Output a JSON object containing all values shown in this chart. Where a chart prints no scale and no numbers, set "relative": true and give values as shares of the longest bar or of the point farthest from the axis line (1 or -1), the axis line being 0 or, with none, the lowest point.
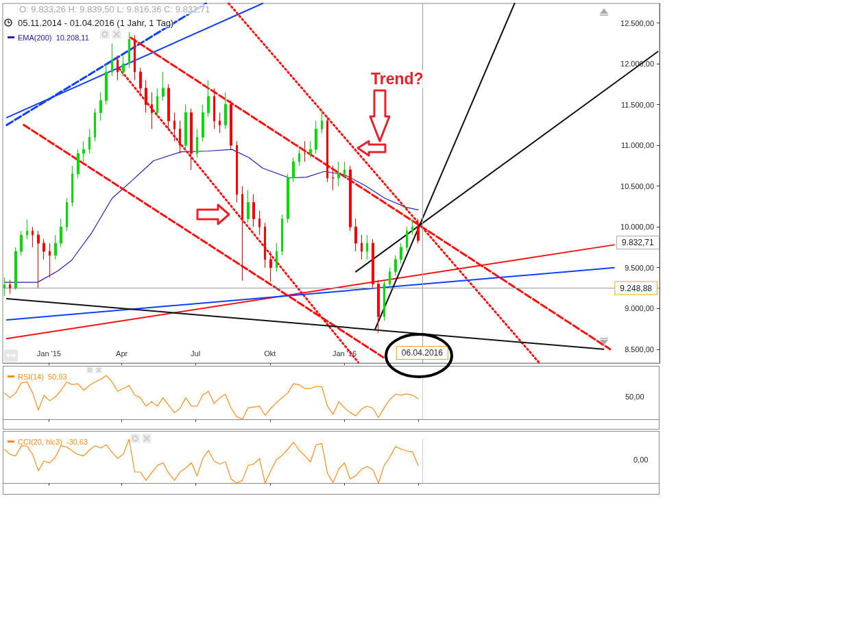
{
  "chart_data": [
    {
      "type": "candlestick",
      "xlim": [
        "2014-11-05",
        "2017-01-24"
      ],
      "ylim": [
        8330,
        12740
      ],
      "xticks": [
        {
          "value": "2015-01-01",
          "label": "Jan '15"
        },
        {
          "value": "2015-04-01",
          "label": "Apr"
        },
        {
          "value": "2015-07-01",
          "label": "Jul"
        },
        {
          "value": "2015-10-01",
          "label": "Okt"
        },
        {
          "value": "2016-01-01",
          "label": "Jan '16"
        }
      ],
      "yticks": [
        {
          "value": 8500,
          "label": "8.500,00"
        },
        {
          "value": 9000,
          "label": "9.000,00"
        },
        {
          "value": 9500,
          "label": "9.500,00"
        },
        {
          "value": 10000,
          "label": "10.000,00"
        },
        {
          "value": 10500,
          "label": "10.500,00"
        },
        {
          "value": 11000,
          "label": "11.000,00"
        },
        {
          "value": 11500,
          "label": "11.500,00"
        },
        {
          "value": 12000,
          "label": "12.000,00"
        },
        {
          "value": 12500,
          "label": "12.500,00"
        }
      ],
      "x": [
        "2014-11-07",
        "2014-11-14",
        "2014-11-21",
        "2014-11-28",
        "2014-12-05",
        "2014-12-12",
        "2014-12-19",
        "2014-12-26",
        "2015-01-02",
        "2015-01-09",
        "2015-01-16",
        "2015-01-23",
        "2015-01-30",
        "2015-02-06",
        "2015-02-13",
        "2015-02-20",
        "2015-02-27",
        "2015-03-06",
        "2015-03-13",
        "2015-03-20",
        "2015-03-27",
        "2015-04-03",
        "2015-04-10",
        "2015-04-17",
        "2015-04-24",
        "2015-05-01",
        "2015-05-08",
        "2015-05-15",
        "2015-05-22",
        "2015-05-29",
        "2015-06-05",
        "2015-06-12",
        "2015-06-19",
        "2015-06-26",
        "2015-07-03",
        "2015-07-10",
        "2015-07-17",
        "2015-07-24",
        "2015-07-31",
        "2015-08-07",
        "2015-08-14",
        "2015-08-21",
        "2015-08-28",
        "2015-09-04",
        "2015-09-11",
        "2015-09-18",
        "2015-09-25",
        "2015-10-02",
        "2015-10-09",
        "2015-10-16",
        "2015-10-23",
        "2015-10-30",
        "2015-11-06",
        "2015-11-13",
        "2015-11-20",
        "2015-11-27",
        "2015-12-04",
        "2015-12-11",
        "2015-12-18",
        "2015-12-25",
        "2016-01-01",
        "2016-01-08",
        "2016-01-15",
        "2016-01-22",
        "2016-01-29",
        "2016-02-05",
        "2016-02-12",
        "2016-02-19",
        "2016-02-26",
        "2016-03-04",
        "2016-03-11",
        "2016-03-18",
        "2016-03-25",
        "2016-04-01"
      ],
      "ohlc": [
        [
          9250,
          9380,
          9150,
          9290
        ],
        [
          9290,
          9350,
          9180,
          9250
        ],
        [
          9250,
          9750,
          9230,
          9700
        ],
        [
          9700,
          9950,
          9650,
          9900
        ],
        [
          9900,
          10090,
          9850,
          9950
        ],
        [
          9950,
          10000,
          9750,
          9900
        ],
        [
          9900,
          9950,
          9250,
          9800
        ],
        [
          9800,
          9850,
          9600,
          9700
        ],
        [
          9700,
          9800,
          9380,
          9650
        ],
        [
          9650,
          9900,
          9600,
          9800
        ],
        [
          9800,
          10100,
          9750,
          10000
        ],
        [
          10000,
          10350,
          9950,
          10300
        ],
        [
          10300,
          10750,
          10250,
          10650
        ],
        [
          10650,
          10950,
          10600,
          10900
        ],
        [
          10900,
          11050,
          10800,
          10950
        ],
        [
          10950,
          11200,
          10900,
          11100
        ],
        [
          11100,
          11450,
          11050,
          11400
        ],
        [
          11400,
          11650,
          11300,
          11550
        ],
        [
          11550,
          12000,
          11500,
          11900
        ],
        [
          11900,
          12250,
          11850,
          12050
        ],
        [
          12050,
          12100,
          11800,
          11900
        ],
        [
          11900,
          12100,
          11850,
          12000
        ],
        [
          12000,
          12390,
          11950,
          12300
        ],
        [
          12300,
          12350,
          11800,
          11900
        ],
        [
          11900,
          11950,
          11600,
          11700
        ],
        [
          11700,
          11800,
          11400,
          11500
        ],
        [
          11500,
          11650,
          11200,
          11400
        ],
        [
          11400,
          11700,
          11350,
          11600
        ],
        [
          11600,
          11900,
          11550,
          11700
        ],
        [
          11700,
          11750,
          11200,
          11300
        ],
        [
          11300,
          11400,
          11050,
          11200
        ],
        [
          11200,
          11300,
          10900,
          11000
        ],
        [
          11000,
          11500,
          10950,
          11400
        ],
        [
          11400,
          11450,
          10700,
          10900
        ],
        [
          10900,
          11200,
          10850,
          11100
        ],
        [
          11100,
          11500,
          11050,
          11400
        ],
        [
          11400,
          11800,
          11350,
          11600
        ],
        [
          11600,
          11700,
          11200,
          11300
        ],
        [
          11300,
          11400,
          11150,
          11250
        ],
        [
          11250,
          11650,
          11200,
          11500
        ],
        [
          11500,
          11550,
          10950,
          11000
        ],
        [
          11000,
          11050,
          10300,
          10400
        ],
        [
          10400,
          10500,
          9340,
          10100
        ],
        [
          10100,
          10450,
          10050,
          10300
        ],
        [
          10300,
          10400,
          10000,
          10100
        ],
        [
          10100,
          10200,
          9900,
          10000
        ],
        [
          10000,
          10050,
          9500,
          9600
        ],
        [
          9600,
          9700,
          9330,
          9500
        ],
        [
          9500,
          9800,
          9450,
          9700
        ],
        [
          9700,
          10150,
          9650,
          10100
        ],
        [
          10100,
          10650,
          10050,
          10600
        ],
        [
          10600,
          10850,
          10550,
          10800
        ],
        [
          10800,
          10950,
          10750,
          10900
        ],
        [
          10900,
          11050,
          10800,
          10900
        ],
        [
          10900,
          11050,
          10850,
          10950
        ],
        [
          10950,
          11300,
          10900,
          11200
        ],
        [
          11200,
          11430,
          11150,
          11300
        ],
        [
          11300,
          11350,
          10550,
          10600
        ],
        [
          10600,
          10750,
          10450,
          10600
        ],
        [
          10600,
          10800,
          10500,
          10650
        ],
        [
          10650,
          10800,
          10600,
          10700
        ],
        [
          10700,
          10750,
          9950,
          10000
        ],
        [
          10000,
          10100,
          9700,
          9800
        ],
        [
          9800,
          9900,
          9600,
          9700
        ],
        [
          9700,
          9900,
          9600,
          9800
        ],
        [
          9800,
          9850,
          9250,
          9300
        ],
        [
          9300,
          9350,
          8700,
          8900
        ],
        [
          8900,
          9350,
          8850,
          9300
        ],
        [
          9300,
          9500,
          9250,
          9450
        ],
        [
          9450,
          9650,
          9400,
          9600
        ],
        [
          9600,
          9800,
          9550,
          9750
        ],
        [
          9750,
          10000,
          9700,
          9950
        ],
        [
          9950,
          10100,
          9900,
          10000
        ],
        [
          10000,
          10100,
          9800,
          9832.71
        ]
      ],
      "colors": [
        "#00dd00",
        "#ff0000",
        "#00dd00",
        "#00dd00",
        "#00dd00",
        "#ff0000",
        "#ff0000",
        "#ff0000",
        "#ff0000",
        "#00dd00",
        "#00dd00",
        "#00dd00",
        "#00dd00",
        "#00dd00",
        "#00dd00",
        "#00dd00",
        "#00dd00",
        "#00dd00",
        "#00dd00",
        "#00dd00",
        "#ff0000",
        "#00dd00",
        "#00dd00",
        "#ff0000",
        "#ff0000",
        "#ff0000",
        "#ff0000",
        "#00dd00",
        "#00dd00",
        "#ff0000",
        "#ff0000",
        "#ff0000",
        "#00dd00",
        "#ff0000",
        "#00dd00",
        "#00dd00",
        "#00dd00",
        "#ff0000",
        "#ff0000",
        "#00dd00",
        "#ff0000",
        "#ff0000",
        "#ff0000",
        "#00dd00",
        "#ff0000",
        "#ff0000",
        "#ff0000",
        "#ff0000",
        "#00dd00",
        "#00dd00",
        "#00dd00",
        "#00dd00",
        "#00dd00",
        "#ff0000",
        "#00dd00",
        "#00dd00",
        "#00dd00",
        "#ff0000",
        "#ff0000",
        "#00dd00",
        "#00dd00",
        "#ff0000",
        "#ff0000",
        "#ff0000",
        "#00dd00",
        "#ff0000",
        "#ff0000",
        "#00dd00",
        "#00dd00",
        "#00dd00",
        "#00dd00",
        "#00dd00",
        "#00dd00",
        "#ff0000"
      ],
      "series": [
        {
          "type": "line",
          "name": "EMA(200)  10.208,11",
          "color": "#2020b0",
          "x": [
            "2014-11-07",
            "2014-12-18",
            "2015-01-12",
            "2015-01-29",
            "2015-02-23",
            "2015-03-20",
            "2015-04-15",
            "2015-05-10",
            "2015-06-13",
            "2015-07-16",
            "2015-08-15",
            "2015-09-05",
            "2015-09-22",
            "2015-10-25",
            "2015-11-15",
            "2015-12-07",
            "2016-01-01",
            "2016-01-26",
            "2016-02-20",
            "2016-03-17",
            "2016-04-01"
          ],
          "values": [
            9320,
            9320,
            9460,
            9590,
            9930,
            10350,
            10580,
            10810,
            10920,
            10930,
            10950,
            10850,
            10720,
            10600,
            10610,
            10680,
            10640,
            10510,
            10350,
            10240,
            10208
          ]
        },
        {
          "type": "line",
          "color": "#1040ff",
          "line_style": "dashed",
          "x": [
            "2014-11-10",
            "2015-07-14"
          ],
          "values": [
            11250,
            12740
          ]
        },
        {
          "type": "line",
          "color": "#1040ff",
          "line_style": "solid",
          "x": [
            "2014-11-10",
            "2015-09-22"
          ],
          "values": [
            11340,
            12740
          ]
        },
        {
          "type": "line",
          "color": "#ff1010",
          "line_style": "dashed",
          "x": [
            "2015-04-12",
            "2016-11-24"
          ],
          "values": [
            12320,
            8500
          ]
        },
        {
          "type": "line",
          "color": "#ff1010",
          "line_style": "dashed",
          "x": [
            "2014-12-01",
            "2016-02-18"
          ],
          "values": [
            11250,
            8400
          ]
        },
        {
          "type": "line",
          "color": "#ff1010",
          "line_style": "dotted",
          "x": [
            "2015-03-29",
            "2016-01-18"
          ],
          "values": [
            11940,
            8340
          ]
        },
        {
          "type": "line",
          "color": "#ff1010",
          "line_style": "dotted",
          "x": [
            "2015-08-11",
            "2016-08-28"
          ],
          "values": [
            12740,
            8340
          ]
        },
        {
          "type": "line",
          "color": "#ff1010",
          "line_style": "solid",
          "x": [
            "2014-11-10",
            "2016-11-29"
          ],
          "values": [
            8630,
            9780
          ]
        },
        {
          "type": "line",
          "color": "#1040ff",
          "line_style": "solid",
          "x": [
            "2014-11-10",
            "2016-11-29"
          ],
          "values": [
            8860,
            9500
          ]
        },
        {
          "type": "line",
          "color": "#111111",
          "line_style": "solid",
          "x": [
            "2014-11-10",
            "2016-11-16"
          ],
          "values": [
            9120,
            8500
          ]
        },
        {
          "type": "line",
          "color": "#111111",
          "line_style": "solid",
          "x": [
            "2016-01-15",
            "2017-01-22"
          ],
          "values": [
            9450,
            12150
          ]
        },
        {
          "type": "line",
          "color": "#111111",
          "line_style": "solid",
          "x": [
            "2016-02-08",
            "2016-07-29"
          ],
          "values": [
            8750,
            12740
          ]
        }
      ],
      "ref_lines": [
        {
          "axis": "y",
          "value": 9248.88,
          "label": "9.248,88",
          "color": "#999999"
        },
        {
          "axis": "x",
          "value": "2016-04-06",
          "label": "06.04.2016",
          "color": "#999999"
        }
      ],
      "annotations": [
        "O: 9.833,26 H: 9.839,50 L: 9.816,36 C: 9.832,71",
        "05.11.2014 - 01.04.2016 (1 Jahr, 1 Tag)",
        "Trend?",
        "9.832,71"
      ],
      "marker": "none",
      "legend": "top left",
      "grid": false
    },
    {
      "type": "line",
      "xlim": [
        "2014-11-05",
        "2017-01-24"
      ],
      "relative": true,
      "xticks": [
        {
          "value": "2015-01-01",
          "label": null
        },
        {
          "value": "2015-04-01",
          "label": null
        },
        {
          "value": "2015-07-01",
          "label": null
        },
        {
          "value": "2015-10-01",
          "label": null
        },
        {
          "value": "2016-01-01",
          "label": null
        },
        {
          "value": "2016-04-01",
          "label": null
        }
      ],
      "tick_labels": false,
      "annotations": [
        "50,00"
      ],
      "x": [
        "2014-11-07",
        "2014-11-14",
        "2014-11-21",
        "2014-11-28",
        "2014-12-05",
        "2014-12-12",
        "2014-12-19",
        "2014-12-26",
        "2015-01-02",
        "2015-01-09",
        "2015-01-16",
        "2015-01-23",
        "2015-01-30",
        "2015-02-06",
        "2015-02-13",
        "2015-02-20",
        "2015-02-27",
        "2015-03-06",
        "2015-03-13",
        "2015-03-20",
        "2015-03-27",
        "2015-04-03",
        "2015-04-10",
        "2015-04-17",
        "2015-04-24",
        "2015-05-01",
        "2015-05-08",
        "2015-05-15",
        "2015-05-22",
        "2015-05-29",
        "2015-06-05",
        "2015-06-12",
        "2015-06-19",
        "2015-06-26",
        "2015-07-03",
        "2015-07-10",
        "2015-07-17",
        "2015-07-24",
        "2015-07-31",
        "2015-08-07",
        "2015-08-14",
        "2015-08-21",
        "2015-08-28",
        "2015-09-04",
        "2015-09-11",
        "2015-09-18",
        "2015-09-25",
        "2015-10-02",
        "2015-10-09",
        "2015-10-16",
        "2015-10-23",
        "2015-10-30",
        "2015-11-06",
        "2015-11-13",
        "2015-11-20",
        "2015-11-27",
        "2015-12-04",
        "2015-12-11",
        "2015-12-18",
        "2015-12-25",
        "2016-01-01",
        "2016-01-08",
        "2016-01-15",
        "2016-01-22",
        "2016-01-29",
        "2016-02-05",
        "2016-02-12",
        "2016-02-19",
        "2016-02-26",
        "2016-03-04",
        "2016-03-11",
        "2016-03-18",
        "2016-03-25",
        "2016-04-01"
      ],
      "series": [
        {
          "name": "RSI(14)  50,93",
          "color": "#ff8c1a",
          "values": [
            0.6,
            0.49,
            0.6,
            0.83,
            0.85,
            0.6,
            0.21,
            0.55,
            0.42,
            0.51,
            0.66,
            0.85,
            0.79,
            0.81,
            0.66,
            0.77,
            0.85,
            0.91,
            1,
            0.85,
            0.64,
            0.7,
            0.77,
            0.55,
            0.49,
            0.3,
            0.4,
            0.3,
            0.49,
            0.32,
            0.15,
            0.25,
            0.49,
            0.3,
            0.3,
            0.55,
            0.64,
            0.36,
            0.49,
            0.57,
            0.25,
            0.06,
            0,
            0.26,
            0.28,
            0.3,
            0.09,
            0.25,
            0.38,
            0.49,
            0.6,
            0.81,
            0.79,
            0.7,
            0.7,
            0.75,
            0.74,
            0.3,
            0.11,
            0.4,
            0.26,
            0.15,
            0.08,
            0.23,
            0.3,
            0.25,
            0.04,
            0.26,
            0.45,
            0.57,
            0.55,
            0.58,
            0.55,
            0.47
          ]
        }
      ],
      "ref_lines": [
        {
          "axis": "x",
          "value": "2016-04-06",
          "color": "#cccccc"
        }
      ],
      "marker": "none",
      "legend": "top left",
      "grid": false
    },
    {
      "type": "line",
      "xlim": [
        "2014-11-05",
        "2017-01-24"
      ],
      "relative": true,
      "xticks": [
        {
          "value": "2015-01-01",
          "label": null
        },
        {
          "value": "2015-04-01",
          "label": null
        },
        {
          "value": "2015-07-01",
          "label": null
        },
        {
          "value": "2015-10-01",
          "label": null
        },
        {
          "value": "2016-01-01",
          "label": null
        },
        {
          "value": "2016-04-01",
          "label": null
        }
      ],
      "tick_labels": false,
      "annotations": [
        "0,00"
      ],
      "x": [
        "2014-11-07",
        "2014-11-14",
        "2014-11-21",
        "2014-11-28",
        "2014-12-05",
        "2014-12-12",
        "2014-12-19",
        "2014-12-26",
        "2015-01-02",
        "2015-01-09",
        "2015-01-16",
        "2015-01-23",
        "2015-01-30",
        "2015-02-06",
        "2015-02-13",
        "2015-02-20",
        "2015-02-27",
        "2015-03-06",
        "2015-03-13",
        "2015-03-20",
        "2015-03-27",
        "2015-04-03",
        "2015-04-10",
        "2015-04-17",
        "2015-04-24",
        "2015-05-01",
        "2015-05-08",
        "2015-05-15",
        "2015-05-22",
        "2015-05-29",
        "2015-06-05",
        "2015-06-12",
        "2015-06-19",
        "2015-06-26",
        "2015-07-03",
        "2015-07-10",
        "2015-07-17",
        "2015-07-24",
        "2015-07-31",
        "2015-08-07",
        "2015-08-14",
        "2015-08-21",
        "2015-08-28",
        "2015-09-04",
        "2015-09-11",
        "2015-09-18",
        "2015-09-25",
        "2015-10-02",
        "2015-10-09",
        "2015-10-16",
        "2015-10-23",
        "2015-10-30",
        "2015-11-06",
        "2015-11-13",
        "2015-11-20",
        "2015-11-27",
        "2015-12-04",
        "2015-12-11",
        "2015-12-18",
        "2015-12-25",
        "2016-01-01",
        "2016-01-08",
        "2016-01-15",
        "2016-01-22",
        "2016-01-29",
        "2016-02-05",
        "2016-02-12",
        "2016-02-19",
        "2016-02-26",
        "2016-03-04",
        "2016-03-11",
        "2016-03-18",
        "2016-03-25",
        "2016-04-01"
      ],
      "series": [
        {
          "name": "CCI(20, hlc3)  -30,63",
          "color": "#ff8c1a",
          "values": [
            0.77,
            0.65,
            0.62,
            0.85,
            0.84,
            0.65,
            0.28,
            0.5,
            0.46,
            0.59,
            0.85,
            0.82,
            0.73,
            0.65,
            0.62,
            0.75,
            0.85,
            0.8,
            0.87,
            0.7,
            0.56,
            0.66,
            1,
            0.25,
            0.25,
            0.06,
            0.24,
            0.4,
            0.46,
            0.22,
            0.06,
            0.25,
            0.34,
            0.46,
            0.16,
            0.56,
            0.74,
            0.5,
            0.43,
            0.48,
            0.09,
            0,
            0.06,
            0.4,
            0.43,
            0.56,
            0,
            0.28,
            0.53,
            0.63,
            0.77,
            0.93,
            0.75,
            0.62,
            0.48,
            0.87,
            0.9,
            0.22,
            0.01,
            0.32,
            0.46,
            0.09,
            0.17,
            0.31,
            0.38,
            0.3,
            0,
            0.4,
            0.59,
            0.83,
            0.77,
            0.73,
            0.71,
            0.4
          ]
        }
      ],
      "ref_lines": [
        {
          "axis": "x",
          "value": "2016-04-06",
          "color": "#cccccc"
        }
      ],
      "marker": "none",
      "legend": "top left",
      "grid": false
    }
  ]
}
